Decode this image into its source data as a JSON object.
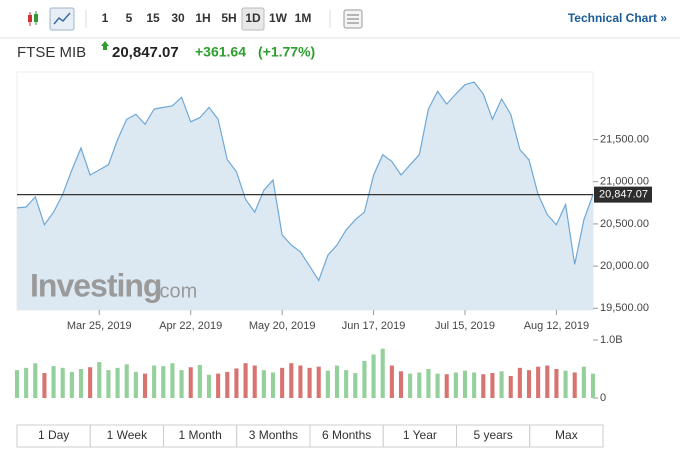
{
  "toolbar": {
    "intervals": [
      "1",
      "5",
      "15",
      "30",
      "1H",
      "5H",
      "1D",
      "1W",
      "1M"
    ],
    "technical_chart": "Technical Chart »"
  },
  "header": {
    "name": "FTSE MIB",
    "price": "20,847.07",
    "change": "+361.64",
    "change_percent": "(+1.77%)"
  },
  "watermark": {
    "brand": "Investing",
    "suffix": ".com"
  },
  "chart_data": [
    {
      "type": "area",
      "categories": [
        null,
        null,
        null,
        null,
        null,
        null,
        null,
        null,
        null,
        "Mar 25, 2019",
        null,
        null,
        null,
        null,
        null,
        null,
        null,
        null,
        null,
        "Apr 22, 2019",
        null,
        null,
        null,
        null,
        null,
        null,
        null,
        null,
        null,
        "May 20, 2019",
        null,
        null,
        null,
        null,
        null,
        null,
        null,
        null,
        null,
        "Jun 17, 2019",
        null,
        null,
        null,
        null,
        null,
        null,
        null,
        null,
        null,
        "Jul 15, 2019",
        null,
        null,
        null,
        null,
        null,
        null,
        null,
        null,
        null,
        "Aug 12, 2019",
        null,
        null,
        null,
        null
      ],
      "values": [
        20690,
        20700,
        20820,
        20490,
        20640,
        20850,
        21140,
        21400,
        21080,
        21140,
        21200,
        21500,
        21740,
        21800,
        21680,
        21860,
        21880,
        21900,
        22000,
        21710,
        21760,
        21880,
        21740,
        21260,
        21120,
        20790,
        20640,
        20900,
        21020,
        20370,
        20250,
        20170,
        20000,
        19830,
        20130,
        20250,
        20430,
        20550,
        20640,
        21080,
        21320,
        21240,
        21080,
        21200,
        21320,
        21860,
        22070,
        21920,
        22040,
        22150,
        22180,
        22040,
        21740,
        21980,
        21800,
        21380,
        21260,
        20850,
        20610,
        20490,
        20730,
        20020,
        20550,
        20847.07
      ],
      "color": "#6fa8d6",
      "fill_color": "#dce9f3",
      "ylim": [
        19480,
        22300
      ],
      "yticks": [
        {
          "value": 19500,
          "label": "19,500.00"
        },
        {
          "value": 20000,
          "label": "20,000.00"
        },
        {
          "value": 20500,
          "label": "20,500.00"
        },
        {
          "value": 21000,
          "label": "21,000.00"
        },
        {
          "value": 21500,
          "label": "21,500.00"
        }
      ],
      "last_value": 20847.07,
      "last_value_label": "20,847.07"
    },
    {
      "type": "bar",
      "values": [
        480000000,
        520000000,
        600000000,
        430000000,
        550000000,
        520000000,
        450000000,
        500000000,
        530000000,
        620000000,
        480000000,
        520000000,
        580000000,
        450000000,
        420000000,
        560000000,
        550000000,
        600000000,
        480000000,
        530000000,
        570000000,
        400000000,
        420000000,
        450000000,
        510000000,
        600000000,
        560000000,
        480000000,
        440000000,
        520000000,
        600000000,
        560000000,
        520000000,
        540000000,
        470000000,
        560000000,
        480000000,
        430000000,
        640000000,
        750000000,
        850000000,
        560000000,
        460000000,
        420000000,
        440000000,
        500000000,
        420000000,
        410000000,
        440000000,
        470000000,
        440000000,
        410000000,
        430000000,
        460000000,
        380000000,
        520000000,
        480000000,
        540000000,
        560000000,
        500000000,
        470000000,
        440000000,
        540000000,
        420000000
      ],
      "up_color": "#93d09c",
      "down_color": "#d77471",
      "ylim": [
        0,
        1000000000
      ],
      "yticks": [
        0,
        {
          "value": 1000000000,
          "label": "1.0B"
        }
      ]
    }
  ],
  "ranges": [
    "1 Day",
    "1 Week",
    "1 Month",
    "3 Months",
    "6 Months",
    "1 Year",
    "5 years",
    "Max"
  ]
}
